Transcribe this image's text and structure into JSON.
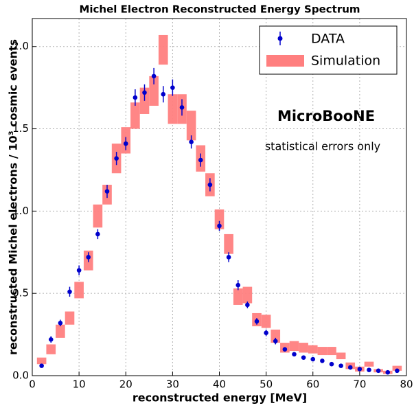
{
  "chart_data": {
    "type": "errorbar-hist",
    "title": "Michel Electron Reconstructed Energy Spectrum",
    "x_label": "reconstructed energy [MeV]",
    "y_label": "reconstructed Michel electrons / 10³  cosmic events",
    "annotations": [
      "MicroBooNE",
      "statistical errors only"
    ],
    "x": [
      2,
      4,
      6,
      8,
      10,
      12,
      14,
      16,
      18,
      20,
      22,
      24,
      26,
      28,
      30,
      32,
      34,
      36,
      38,
      40,
      42,
      44,
      46,
      48,
      50,
      52,
      54,
      56,
      58,
      60,
      62,
      64,
      66,
      68,
      70,
      72,
      74,
      76,
      78
    ],
    "series": [
      {
        "name": "DATA",
        "color": "#0000cc",
        "values": [
          0.06,
          0.22,
          0.32,
          0.51,
          0.64,
          0.72,
          0.86,
          1.12,
          1.32,
          1.41,
          1.69,
          1.72,
          1.82,
          1.71,
          1.75,
          1.63,
          1.42,
          1.31,
          1.16,
          0.91,
          0.72,
          0.55,
          0.43,
          0.33,
          0.26,
          0.21,
          0.16,
          0.13,
          0.11,
          0.1,
          0.09,
          0.07,
          0.06,
          0.05,
          0.04,
          0.035,
          0.03,
          0.02,
          0.03
        ],
        "errors": [
          0.01,
          0.02,
          0.02,
          0.03,
          0.03,
          0.03,
          0.03,
          0.04,
          0.04,
          0.04,
          0.05,
          0.05,
          0.05,
          0.05,
          0.05,
          0.05,
          0.04,
          0.04,
          0.04,
          0.03,
          0.03,
          0.03,
          0.02,
          0.02,
          0.02,
          0.02,
          0.01,
          0.01,
          0.01,
          0.01,
          0.01,
          0.01,
          0.01,
          0.01,
          0.01,
          0.01,
          0.01,
          0.01,
          0.01
        ]
      },
      {
        "name": "Simulation",
        "color": "#ff7f7f",
        "values": [
          0.09,
          0.16,
          0.27,
          0.35,
          0.52,
          0.7,
          0.97,
          1.1,
          1.32,
          1.43,
          1.58,
          1.67,
          1.73,
          1.98,
          1.62,
          1.62,
          1.52,
          1.32,
          1.16,
          0.95,
          0.8,
          0.48,
          0.49,
          0.34,
          0.33,
          0.24,
          0.17,
          0.18,
          0.17,
          0.16,
          0.15,
          0.15,
          0.12,
          0.06,
          0.04,
          0.07,
          0.03,
          0.02,
          0.045
        ],
        "errors": [
          0.02,
          0.03,
          0.04,
          0.04,
          0.05,
          0.06,
          0.07,
          0.06,
          0.09,
          0.08,
          0.08,
          0.08,
          0.09,
          0.09,
          0.09,
          0.09,
          0.09,
          0.08,
          0.07,
          0.06,
          0.06,
          0.05,
          0.05,
          0.04,
          0.04,
          0.04,
          0.03,
          0.03,
          0.03,
          0.025,
          0.025,
          0.025,
          0.02,
          0.02,
          0.015,
          0.015,
          0.01,
          0.01,
          0.015
        ]
      }
    ],
    "xlim": [
      0,
      80
    ],
    "ylim": [
      0,
      2.17
    ],
    "xticks": [
      0,
      10,
      20,
      30,
      40,
      50,
      60,
      70,
      80
    ],
    "yticks": [
      {
        "value": 0,
        "label": "0.0"
      },
      {
        "value": 0.5,
        "label": "0.5"
      },
      {
        "value": 1,
        "label": "1.0"
      },
      {
        "value": 1.5,
        "label": "1.5"
      },
      {
        "value": 2,
        "label": "2.0"
      }
    ],
    "grid": true,
    "legend": "upper right"
  }
}
